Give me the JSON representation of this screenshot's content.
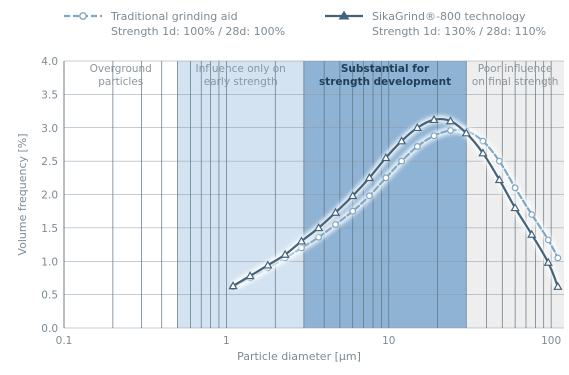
{
  "chart_data": {
    "type": "line",
    "x_scale": "log",
    "xlim": [
      0.1,
      120
    ],
    "ylim": [
      0,
      4.0
    ],
    "xlabel": "Particle diameter [μm]",
    "ylabel": "Volume frequency [%]",
    "x_ticks": [
      "0.1",
      "1",
      "10",
      "100"
    ],
    "y_ticks": [
      "0.0",
      "0.5",
      "1.0",
      "1.5",
      "2.0",
      "2.5",
      "3.0",
      "3.5",
      "4.0"
    ],
    "grid": "log-vertical-and-horizontal",
    "legend_position": "top",
    "legend": [
      {
        "name": "Traditional grinding aid",
        "subtitle": "Strength 1d: 100% / 28d: 100%",
        "style": "dashed-circle",
        "color": "#7fa6c2"
      },
      {
        "name": "SikaGrind®-800 technology",
        "subtitle": "Strength 1d: 130% / 28d: 110%",
        "style": "solid-triangle",
        "color": "#44637b"
      }
    ],
    "zones": [
      {
        "label_lines": [
          "Overground",
          "particles"
        ],
        "x_from": 0.1,
        "x_to": 0.5,
        "color": "#ffffff",
        "bold": false
      },
      {
        "label_lines": [
          "Influence only on",
          "early strength"
        ],
        "x_from": 0.5,
        "x_to": 3,
        "color": "#d4e3f2",
        "bold": false
      },
      {
        "label_lines": [
          "Substantial for",
          "strength development"
        ],
        "x_from": 3,
        "x_to": 30,
        "color": "#8fb3d4",
        "bold": true
      },
      {
        "label_lines": [
          "Poor influence",
          "on final strength"
        ],
        "x_from": 30,
        "x_to": 120,
        "color": "#eeeeee",
        "bold": false
      }
    ],
    "series": [
      {
        "name": "Traditional grinding aid",
        "color": "#7fa6c2",
        "marker": "circle",
        "dashed": true,
        "points": [
          [
            1.1,
            0.62
          ],
          [
            1.4,
            0.75
          ],
          [
            1.8,
            0.9
          ],
          [
            2.3,
            1.05
          ],
          [
            2.9,
            1.2
          ],
          [
            3.7,
            1.36
          ],
          [
            4.7,
            1.55
          ],
          [
            6.0,
            1.75
          ],
          [
            7.6,
            1.98
          ],
          [
            9.6,
            2.25
          ],
          [
            12,
            2.5
          ],
          [
            15,
            2.72
          ],
          [
            19,
            2.88
          ],
          [
            24,
            2.96
          ],
          [
            30,
            2.95
          ],
          [
            38,
            2.8
          ],
          [
            48,
            2.5
          ],
          [
            60,
            2.1
          ],
          [
            76,
            1.7
          ],
          [
            96,
            1.32
          ],
          [
            110,
            1.05
          ]
        ]
      },
      {
        "name": "SikaGrind®-800 technology",
        "color": "#44637b",
        "marker": "triangle",
        "dashed": false,
        "points": [
          [
            1.1,
            0.63
          ],
          [
            1.4,
            0.78
          ],
          [
            1.8,
            0.94
          ],
          [
            2.3,
            1.1
          ],
          [
            2.9,
            1.3
          ],
          [
            3.7,
            1.5
          ],
          [
            4.7,
            1.73
          ],
          [
            6.0,
            1.98
          ],
          [
            7.6,
            2.25
          ],
          [
            9.6,
            2.55
          ],
          [
            12,
            2.8
          ],
          [
            15,
            3.0
          ],
          [
            19,
            3.12
          ],
          [
            24,
            3.1
          ],
          [
            30,
            2.92
          ],
          [
            38,
            2.62
          ],
          [
            48,
            2.22
          ],
          [
            60,
            1.8
          ],
          [
            76,
            1.4
          ],
          [
            96,
            0.98
          ],
          [
            110,
            0.62
          ]
        ]
      }
    ]
  }
}
